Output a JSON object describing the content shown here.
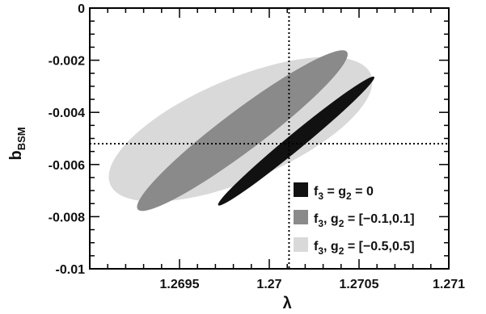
{
  "chart_data": {
    "type": "contour",
    "xlabel": "λ",
    "ylabel": {
      "base": "b",
      "sub": "BSM"
    },
    "xlim": [
      1.269,
      1.271
    ],
    "ylim": [
      -0.01,
      0
    ],
    "x_ticks": [
      {
        "value": 1.2695,
        "label": "1.2695"
      },
      {
        "value": 1.27,
        "label": "1.27"
      },
      {
        "value": 1.2705,
        "label": "1.2705"
      },
      {
        "value": 1.271,
        "label": "1.271"
      }
    ],
    "y_ticks": [
      {
        "value": 0,
        "label": "0"
      },
      {
        "value": -0.002,
        "label": "-0.002"
      },
      {
        "value": -0.004,
        "label": "-0.004"
      },
      {
        "value": -0.006,
        "label": "-0.006"
      },
      {
        "value": -0.008,
        "label": "-0.008"
      },
      {
        "value": -0.01,
        "label": "-0.01"
      }
    ],
    "reference_lines": {
      "x": 1.27011,
      "y": -0.0052
    },
    "legend_position": "bottom-right",
    "series": [
      {
        "label_main": "f",
        "label_sub": "3",
        "label_mid": ", g",
        "label_sub2": "2",
        "label_rest": " = [−0.5,0.5]",
        "color": "#d9d9d9",
        "ellipse": {
          "cx": 1.26984,
          "cy": -0.00465,
          "rx_end": [
            1.26925,
            -0.0081
          ],
          "ry_end": [
            1.27066,
            -0.0013
          ],
          "a": 0.00094,
          "b": 0.00056
        }
      },
      {
        "label_main": "f",
        "label_sub": "3",
        "label_mid": ", g",
        "label_sub2": "2",
        "label_rest": " = [−0.1,0.1]",
        "color": "#8a8a8a",
        "ellipse": {
          "cx": 1.26985,
          "cy": -0.0047,
          "a": 0.00107,
          "b": 0.00018
        }
      },
      {
        "label_main": "f",
        "label_sub": "3",
        "label_mid": " = g",
        "label_sub2": "2",
        "label_rest": " = 0",
        "color": "#111111",
        "ellipse": {
          "cx": 1.27015,
          "cy": -0.0051,
          "a": 0.00083,
          "b": 6.5e-05
        }
      }
    ]
  }
}
